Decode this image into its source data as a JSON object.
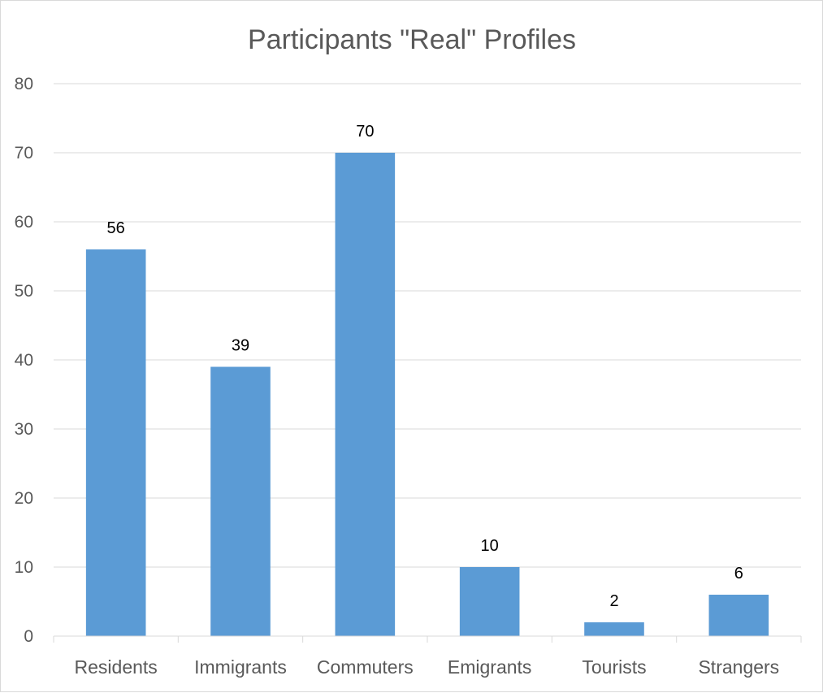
{
  "chart_data": {
    "type": "bar",
    "title": "Participants \"Real\" Profiles",
    "categories": [
      "Residents",
      "Immigrants",
      "Commuters",
      "Emigrants",
      "Tourists",
      "Strangers"
    ],
    "values": [
      56,
      39,
      70,
      10,
      2,
      6
    ],
    "data_labels": [
      "56",
      "39",
      "70",
      "10",
      "2",
      "6"
    ],
    "y_ticks": [
      "0",
      "10",
      "20",
      "30",
      "40",
      "50",
      "60",
      "70",
      "80"
    ],
    "ylim": [
      0,
      80
    ],
    "grid": true,
    "legend": "none",
    "bar_color": "#5b9bd5"
  }
}
